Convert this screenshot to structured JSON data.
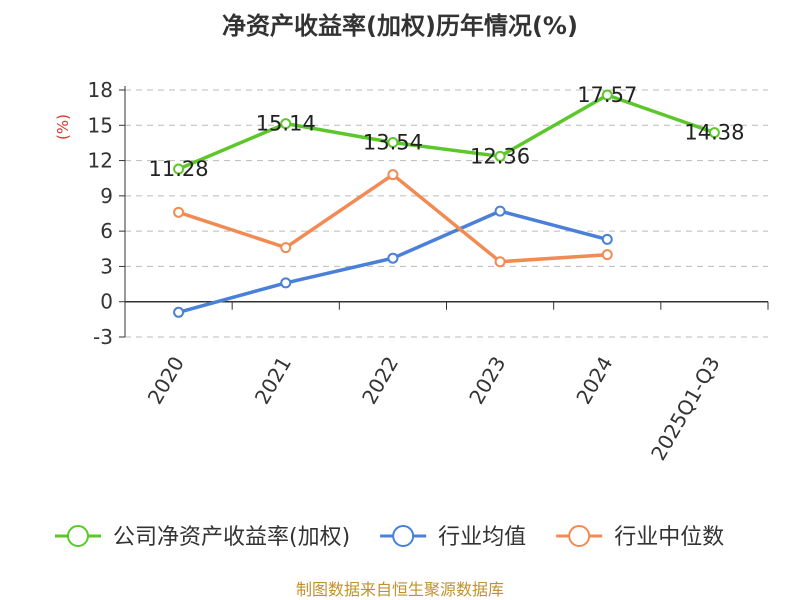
{
  "chart_data": {
    "type": "line",
    "title": "净资产收益率(加权)历年情况(%)",
    "ylabel": "(%)",
    "xlabel": "",
    "categories": [
      "2020",
      "2021",
      "2022",
      "2023",
      "2024",
      "2025Q1-Q3"
    ],
    "ylim": [
      -3,
      18
    ],
    "yticks": [
      -3,
      0,
      3,
      6,
      9,
      12,
      15,
      18
    ],
    "y_tick_labels": [
      "-3",
      "0",
      "3",
      "6",
      "9",
      "12",
      "15",
      "18"
    ],
    "grid": true,
    "legend_position": "bottom",
    "series": [
      {
        "name": "公司净资产收益率(加权)",
        "color": "#5cc72a",
        "values": [
          11.28,
          15.14,
          13.54,
          12.36,
          17.57,
          14.38
        ],
        "labels": [
          "11.28",
          "15.14",
          "13.54",
          "12.36",
          "17.57",
          "14.38"
        ],
        "show_labels": true
      },
      {
        "name": "行业均值",
        "color": "#4a80d8",
        "values": [
          -0.9,
          1.6,
          3.7,
          7.7,
          5.3,
          null
        ],
        "show_labels": false
      },
      {
        "name": "行业中位数",
        "color": "#f28b53",
        "values": [
          7.6,
          4.6,
          10.8,
          3.4,
          4.0,
          null
        ],
        "show_labels": false
      }
    ],
    "colors": {
      "unit_label": "#d9342b",
      "source": "#c0922e",
      "grid": "#bbbbbb",
      "axis": "#333333"
    },
    "source": "制图数据来自恒生聚源数据库"
  }
}
